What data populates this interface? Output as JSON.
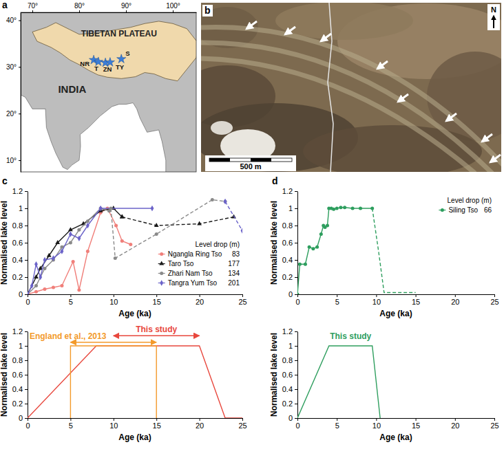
{
  "chart_data": [
    {
      "type": "map",
      "panel": "a",
      "xlim": [
        67.5,
        105
      ],
      "ylim": [
        7.5,
        41.7
      ],
      "xticks": [
        {
          "value": 70,
          "label": "70°"
        },
        {
          "value": 80,
          "label": "80°"
        },
        {
          "value": 90,
          "label": "90°"
        },
        {
          "value": 100,
          "label": "100°"
        }
      ],
      "yticks": [
        {
          "value": 10,
          "label": "10°"
        },
        {
          "value": 20,
          "label": "20°"
        },
        {
          "value": 30,
          "label": "30°"
        },
        {
          "value": 40,
          "label": "40°"
        }
      ],
      "labels": [
        "TIBETAN PLATEAU",
        "INDIA"
      ],
      "points": {
        "labels": [
          "NR",
          "T",
          "ZN",
          "TY",
          "S"
        ],
        "lon": [
          83.1,
          84.1,
          85.6,
          86.6,
          89.0
        ],
        "lat": [
          31.5,
          31.1,
          30.9,
          31.0,
          31.7
        ],
        "color": "#3b7dd8",
        "marker": "star"
      }
    },
    {
      "type": "image",
      "panel": "b",
      "north": "N",
      "scale_bar": {
        "value": 500,
        "label": "500 m"
      }
    },
    {
      "type": "line",
      "panel": "c",
      "x_label": "Age (ka)",
      "y_label": "Normalised lake level",
      "xlim": [
        0,
        25
      ],
      "xticks": [
        0,
        5,
        10,
        15,
        20,
        25
      ],
      "ylim": [
        0,
        1.2
      ],
      "yticks": [
        0,
        0.2,
        0.4,
        0.6,
        0.8,
        1,
        1.2
      ],
      "legend": "lower right",
      "legend_title": "Level drop (m)",
      "series": [
        {
          "name": "Ngangla Ring Tso",
          "color": "#f07f7a",
          "marker": "circle",
          "line_style": "solid",
          "level_drop": 83,
          "x": [
            0,
            1,
            2,
            3,
            4,
            5.3,
            6,
            7,
            8.5,
            9.3,
            10.3,
            11,
            12
          ],
          "values": [
            0,
            0.03,
            0.06,
            0.08,
            0.1,
            0.38,
            0.05,
            0.5,
            0.95,
            1,
            0.8,
            0.62,
            0.58
          ]
        },
        {
          "name": "Taro Tso",
          "color": "#1a1a1a",
          "marker": "triangle",
          "line_style": "solid",
          "level_drop": 177,
          "x": [
            0,
            1,
            1.5,
            2.5,
            3.5,
            5,
            6.5,
            8.5,
            10,
            11
          ],
          "values": [
            0,
            0.2,
            0.3,
            0.45,
            0.6,
            0.75,
            0.82,
            0.97,
            1,
            0.9
          ]
        },
        {
          "name": "Zhari Nam Tso",
          "color": "#8a8a8a",
          "marker": "circle",
          "line_style": "solid",
          "level_drop": 134,
          "x": [
            0,
            1,
            2,
            3,
            4,
            5,
            6,
            7,
            8.5,
            9.5
          ],
          "values": [
            0,
            0.1,
            0.3,
            0.4,
            0.55,
            0.6,
            0.75,
            0.85,
            1,
            0.97
          ]
        },
        {
          "name": "Tangra Yum Tso",
          "color": "#6b63c9",
          "marker": "diamond",
          "line_style": "solid",
          "level_drop": 201,
          "x": [
            0,
            0.5,
            1,
            1.5,
            2,
            3,
            4,
            5,
            6,
            7,
            8.5,
            14.5
          ],
          "values": [
            0,
            0.1,
            0.35,
            0.2,
            0.4,
            0.42,
            0.5,
            0.7,
            0.65,
            0.8,
            1,
            1
          ]
        },
        {
          "color": "#1a1a1a",
          "marker": "triangle",
          "line_style": "dashed",
          "x": [
            11,
            15,
            20,
            24
          ],
          "values": [
            0.9,
            0.8,
            0.82,
            0.9
          ]
        },
        {
          "color": "#8a8a8a",
          "marker": "circle",
          "line_style": "dashed",
          "x": [
            9.7,
            10.2,
            15,
            21.5,
            23
          ],
          "values": [
            1,
            0.42,
            0.7,
            1.1,
            1.08
          ]
        },
        {
          "color": "#6b63c9",
          "marker": "diamond",
          "line_style": "dashed",
          "x": [
            23,
            25
          ],
          "values": [
            1.08,
            0.74
          ]
        }
      ]
    },
    {
      "type": "line",
      "x_label": "Age (ka)",
      "y_label": "Normalised lake level",
      "xlim": [
        0,
        25
      ],
      "xticks": [
        0,
        5,
        10,
        15,
        20,
        25
      ],
      "ylim": [
        0,
        1.2
      ],
      "yticks": [
        0,
        0.2,
        0.4,
        0.6,
        0.8,
        1,
        1.2
      ],
      "series": [
        {
          "color": "#e8473d",
          "marker": "none",
          "line_style": "solid",
          "x": [
            0,
            8,
            20,
            23,
            25
          ],
          "values": [
            0,
            1,
            1,
            0,
            0
          ]
        },
        {
          "color": "#f39a2b",
          "marker": "none",
          "line_style": "solid",
          "x": [
            5,
            5,
            15,
            15
          ],
          "values": [
            0,
            1,
            1,
            0
          ]
        }
      ],
      "annotations": [
        {
          "text": "This study",
          "color": "#e8473d",
          "x": 15,
          "y": 1.19,
          "span": [
            10,
            20
          ],
          "span_y": 1.14
        },
        {
          "text": "England et al., 2013",
          "color": "#f39a2b",
          "x": 4.7,
          "y": 1.1,
          "span": [
            5,
            15
          ],
          "span_y": 1.05
        }
      ]
    },
    {
      "type": "line",
      "panel": "d",
      "x_label": "Age (ka)",
      "y_label": "Normalised lake level",
      "xlim": [
        0,
        25
      ],
      "xticks": [
        0,
        5,
        10,
        15,
        20,
        25
      ],
      "ylim": [
        0,
        1.2
      ],
      "yticks": [
        0,
        0.2,
        0.4,
        0.6,
        0.8,
        1,
        1.2
      ],
      "legend": "upper right",
      "legend_title": "Level drop (m)",
      "series": [
        {
          "name": "Siling Tso",
          "color": "#2e9e5e",
          "marker": "circle",
          "line_style": "solid",
          "level_drop": 66,
          "x": [
            0,
            0.3,
            1,
            1.5,
            2,
            2.5,
            3,
            3.3,
            3.5,
            3.8,
            4,
            4.3,
            4.6,
            5,
            5.5,
            6,
            7,
            8,
            9.5
          ],
          "values": [
            0,
            0.35,
            0.35,
            0.55,
            0.53,
            0.55,
            0.7,
            0.8,
            0.78,
            0.8,
            1,
            1,
            0.99,
            1,
            1.01,
            1.01,
            1,
            1,
            1
          ]
        },
        {
          "color": "#2e9e5e",
          "marker": "none",
          "line_style": "dashed",
          "x": [
            9.5,
            10.3,
            11,
            15
          ],
          "values": [
            1,
            0.5,
            0.02,
            0.02
          ]
        }
      ]
    },
    {
      "type": "line",
      "x_label": "Age (ka)",
      "y_label": "Normalised lake level",
      "xlim": [
        0,
        25
      ],
      "xticks": [
        0,
        5,
        10,
        15,
        20,
        25
      ],
      "ylim": [
        0,
        1.2
      ],
      "yticks": [
        0,
        0.2,
        0.4,
        0.6,
        0.8,
        1,
        1.2
      ],
      "series": [
        {
          "color": "#2e9e5e",
          "marker": "none",
          "line_style": "solid",
          "x": [
            0,
            4,
            9.5,
            10.5
          ],
          "values": [
            0,
            1,
            1,
            0
          ]
        }
      ],
      "annotations": [
        {
          "text": "This study",
          "color": "#2e9e5e",
          "x": 6.75,
          "y": 1.1
        }
      ]
    }
  ]
}
